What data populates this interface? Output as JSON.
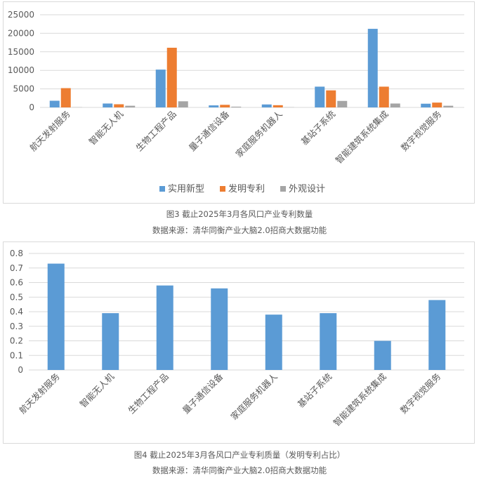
{
  "chart_data": [
    {
      "type": "bar",
      "categories": [
        "航天发射服务",
        "智能无人机",
        "生物工程产品",
        "量子通信设备",
        "家庭服务机器人",
        "基站子系统",
        "智能建筑系统集成",
        "数字视觉服务"
      ],
      "series": [
        {
          "name": "实用新型",
          "color": "#5b9bd5",
          "values": [
            1800,
            1050,
            10200,
            550,
            800,
            5600,
            21200,
            1000
          ]
        },
        {
          "name": "发明专利",
          "color": "#ed7d31",
          "values": [
            5200,
            850,
            16100,
            700,
            600,
            4600,
            5600,
            1300
          ]
        },
        {
          "name": "外观设计",
          "color": "#a5a5a5",
          "values": [
            50,
            450,
            1650,
            200,
            50,
            1750,
            1050,
            450
          ]
        }
      ],
      "y_ticks": [
        "0",
        "5000",
        "10000",
        "15000",
        "20000",
        "25000"
      ],
      "ylim": [
        0,
        25000
      ],
      "grid": true,
      "legend": "bottom"
    },
    {
      "type": "bar",
      "categories": [
        "航天发射服务",
        "智能无人机",
        "生物工程产品",
        "量子通信设备",
        "家庭服务机器人",
        "基站子系统",
        "智能建筑系统集成",
        "数字视觉服务"
      ],
      "series": [
        {
          "color": "#5b9bd5",
          "values": [
            0.73,
            0.39,
            0.58,
            0.56,
            0.38,
            0.39,
            0.2,
            0.48
          ]
        }
      ],
      "y_ticks": [
        "0",
        "0.1",
        "0.2",
        "0.3",
        "0.4",
        "0.5",
        "0.6",
        "0.7",
        "0.8"
      ],
      "ylim": [
        0,
        0.8
      ],
      "grid": true,
      "legend": "none"
    }
  ],
  "captions": {
    "fig3_title": "图3 截止2025年3月各风口产业专利数量",
    "fig3_source": "数据来源：清华同衡产业大脑2.0招商大数据功能",
    "fig4_title": "图4 截止2025年3月各风口产业专利质量（发明专利占比）",
    "fig4_source": "数据来源：清华同衡产业大脑2.0招商大数据功能"
  }
}
